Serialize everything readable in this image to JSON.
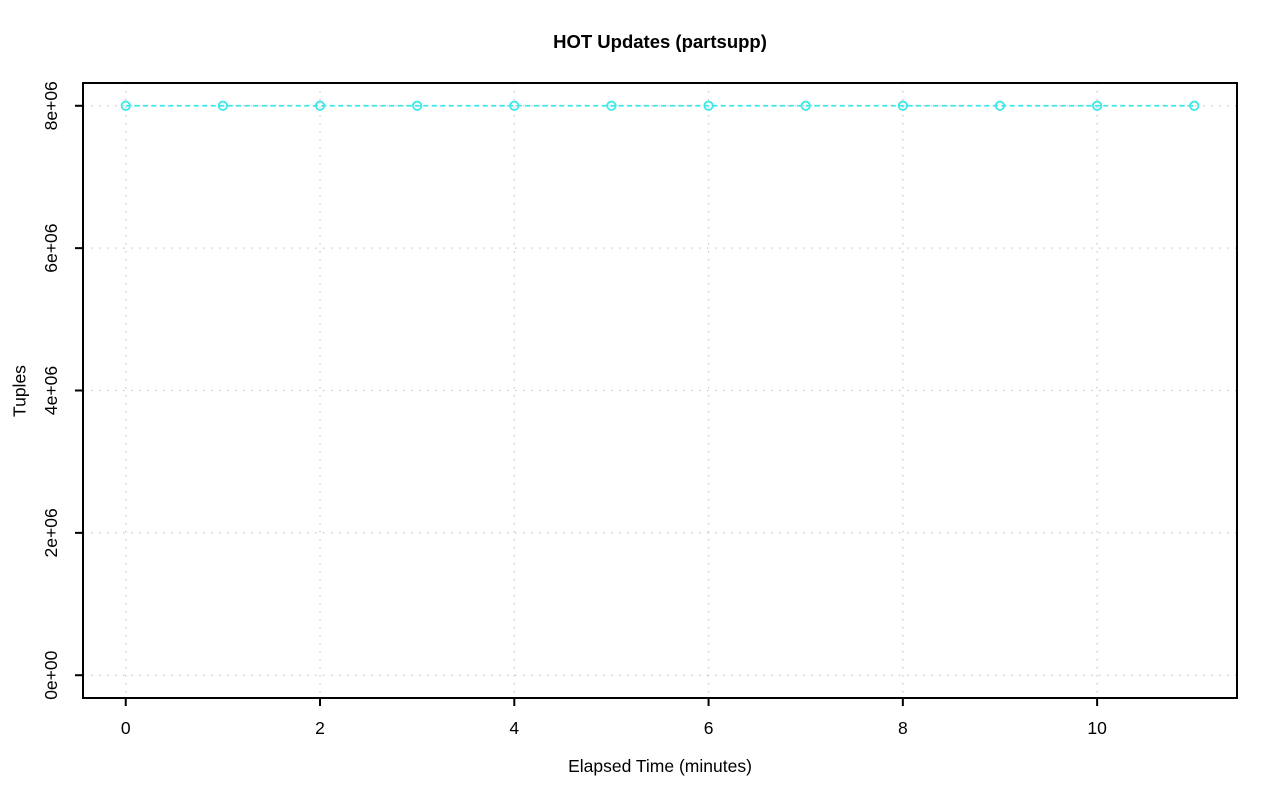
{
  "chart_data": {
    "type": "line",
    "title": "HOT Updates (partsupp)",
    "xlabel": "Elapsed Time (minutes)",
    "ylabel": "Tuples",
    "x": [
      0,
      1,
      2,
      3,
      4,
      5,
      6,
      7,
      8,
      9,
      10,
      11
    ],
    "y": [
      8000000,
      8000000,
      8000000,
      8000000,
      8000000,
      8000000,
      8000000,
      8000000,
      8000000,
      8000000,
      8000000,
      8000000
    ],
    "xlim": [
      0,
      11
    ],
    "ylim": [
      0,
      8000000
    ],
    "x_ticks": [
      0,
      2,
      4,
      6,
      8,
      10
    ],
    "x_tick_labels": [
      "0",
      "2",
      "4",
      "6",
      "8",
      "10"
    ],
    "y_ticks": [
      0,
      2000000,
      4000000,
      6000000,
      8000000
    ],
    "y_tick_labels": [
      "0e+00",
      "2e+06",
      "4e+06",
      "6e+06",
      "8e+06"
    ],
    "grid": "dotted",
    "legend_position": "none",
    "line_style": "dashed",
    "marker": "open-circle",
    "series_color": "#3DE8E8",
    "grid_color": "#C6C6C6",
    "axis_color": "#000000",
    "text_color": "#000000",
    "background": "#FFFFFF"
  }
}
